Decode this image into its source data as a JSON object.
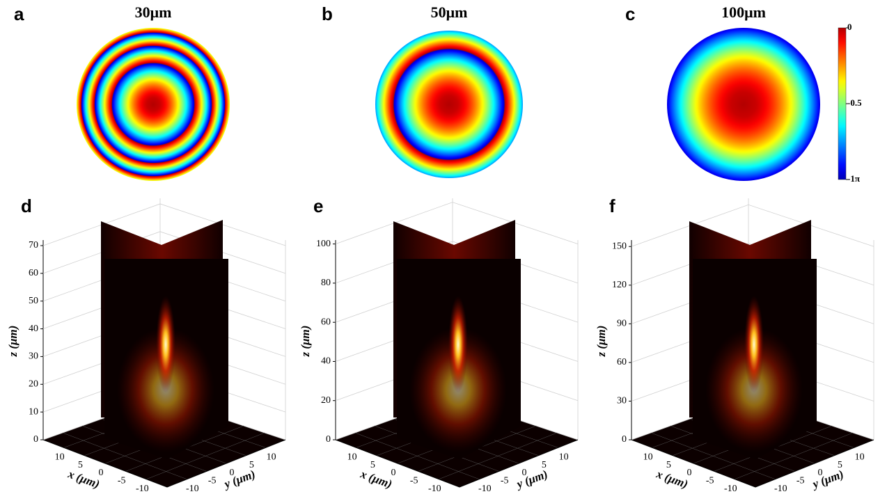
{
  "panels": [
    {
      "label": "a",
      "title": "30μm"
    },
    {
      "label": "b",
      "title": "50μm"
    },
    {
      "label": "c",
      "title": "100μm"
    }
  ],
  "colorbar": {
    "lim": [
      -1,
      0
    ],
    "ticks": [
      0,
      -0.5,
      {
        "value": -1,
        "label": "-1π"
      }
    ]
  },
  "volumes": [
    {
      "label": "d",
      "xlabel": "x (μm)",
      "ylabel": "y (μm)",
      "zlabel": "z (μm)",
      "xlim": [
        -15,
        15
      ],
      "ylim": [
        -15,
        15
      ],
      "zlim": [
        0,
        72
      ],
      "xticks": [
        10,
        5,
        0,
        -5,
        -10
      ],
      "yticks": [
        -10,
        -5,
        0,
        5,
        10
      ],
      "zticks": [
        0,
        10,
        20,
        30,
        40,
        50,
        60,
        70
      ]
    },
    {
      "label": "e",
      "xlabel": "x (μm)",
      "ylabel": "y (μm)",
      "zlabel": "z (μm)",
      "xlim": [
        -15,
        15
      ],
      "ylim": [
        -15,
        15
      ],
      "zlim": [
        0,
        102
      ],
      "xticks": [
        10,
        5,
        0,
        -5,
        -10
      ],
      "yticks": [
        -10,
        -5,
        0,
        5,
        10
      ],
      "zticks": [
        0,
        20,
        40,
        60,
        80,
        100
      ]
    },
    {
      "label": "f",
      "xlabel": "x (μm)",
      "ylabel": "y (μm)",
      "zlabel": "z (μm)",
      "xlim": [
        -15,
        15
      ],
      "ylim": [
        -15,
        15
      ],
      "zlim": [
        0,
        155
      ],
      "xticks": [
        10,
        5,
        0,
        -5,
        -10
      ],
      "yticks": [
        -10,
        -5,
        0,
        5,
        10
      ],
      "zticks": [
        0,
        30,
        60,
        90,
        120,
        150
      ]
    }
  ]
}
